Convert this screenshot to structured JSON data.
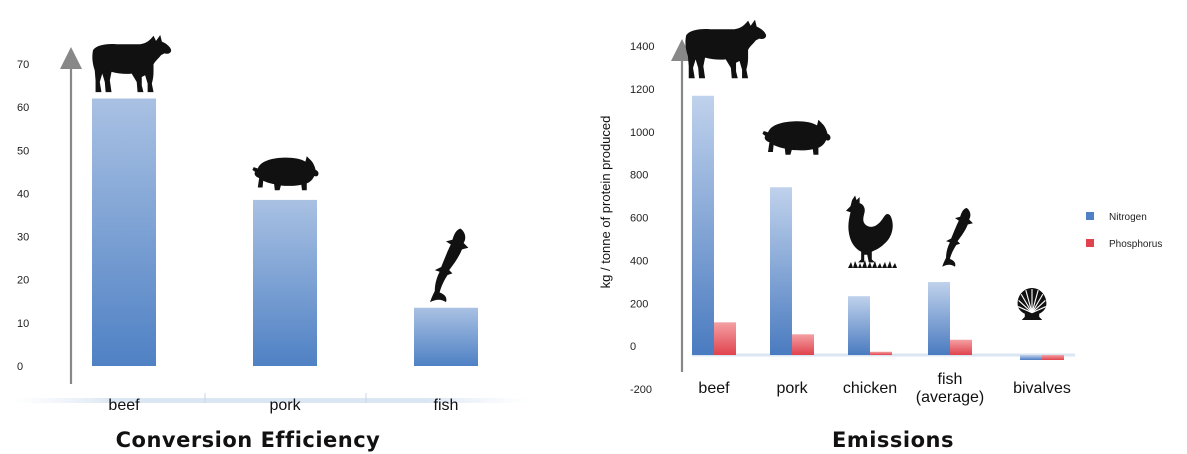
{
  "chart_data": [
    {
      "type": "bar",
      "title": "Conversion Efficiency",
      "categories": [
        "beef",
        "pork",
        "fish"
      ],
      "icons": [
        "cow-icon",
        "pig-icon",
        "fish-icon"
      ],
      "values": [
        62,
        38.5,
        13.5
      ],
      "yticks": [
        0,
        10,
        20,
        30,
        40,
        50,
        60,
        70
      ],
      "ylim": [
        0,
        70
      ],
      "ylabel": "",
      "xlabel": "",
      "colors": {
        "bar_top": "#a9c1e3",
        "bar_bottom": "#4f81c4"
      }
    },
    {
      "type": "bar",
      "title": "Emissions",
      "ylabel": "kg / tonne of protein produced",
      "xlabel": "",
      "categories": [
        "beef",
        "pork",
        "chicken",
        "fish\n(average)",
        "bivalves"
      ],
      "icons": [
        "cow-icon",
        "pig-icon",
        "chicken-icon",
        "fish-icon",
        "scallop-shell-icon"
      ],
      "series": [
        {
          "name": "Nitrogen",
          "values": [
            1190,
            770,
            270,
            335,
            -40
          ],
          "color": "#4f81c4"
        },
        {
          "name": "Phosphorus",
          "values": [
            150,
            95,
            15,
            70,
            -40
          ],
          "color": "#e0434d"
        }
      ],
      "yticks": [
        -200,
        0,
        200,
        400,
        600,
        800,
        1000,
        1200,
        1400
      ],
      "ylim": [
        -200,
        1400
      ],
      "legend_position": "right"
    }
  ]
}
